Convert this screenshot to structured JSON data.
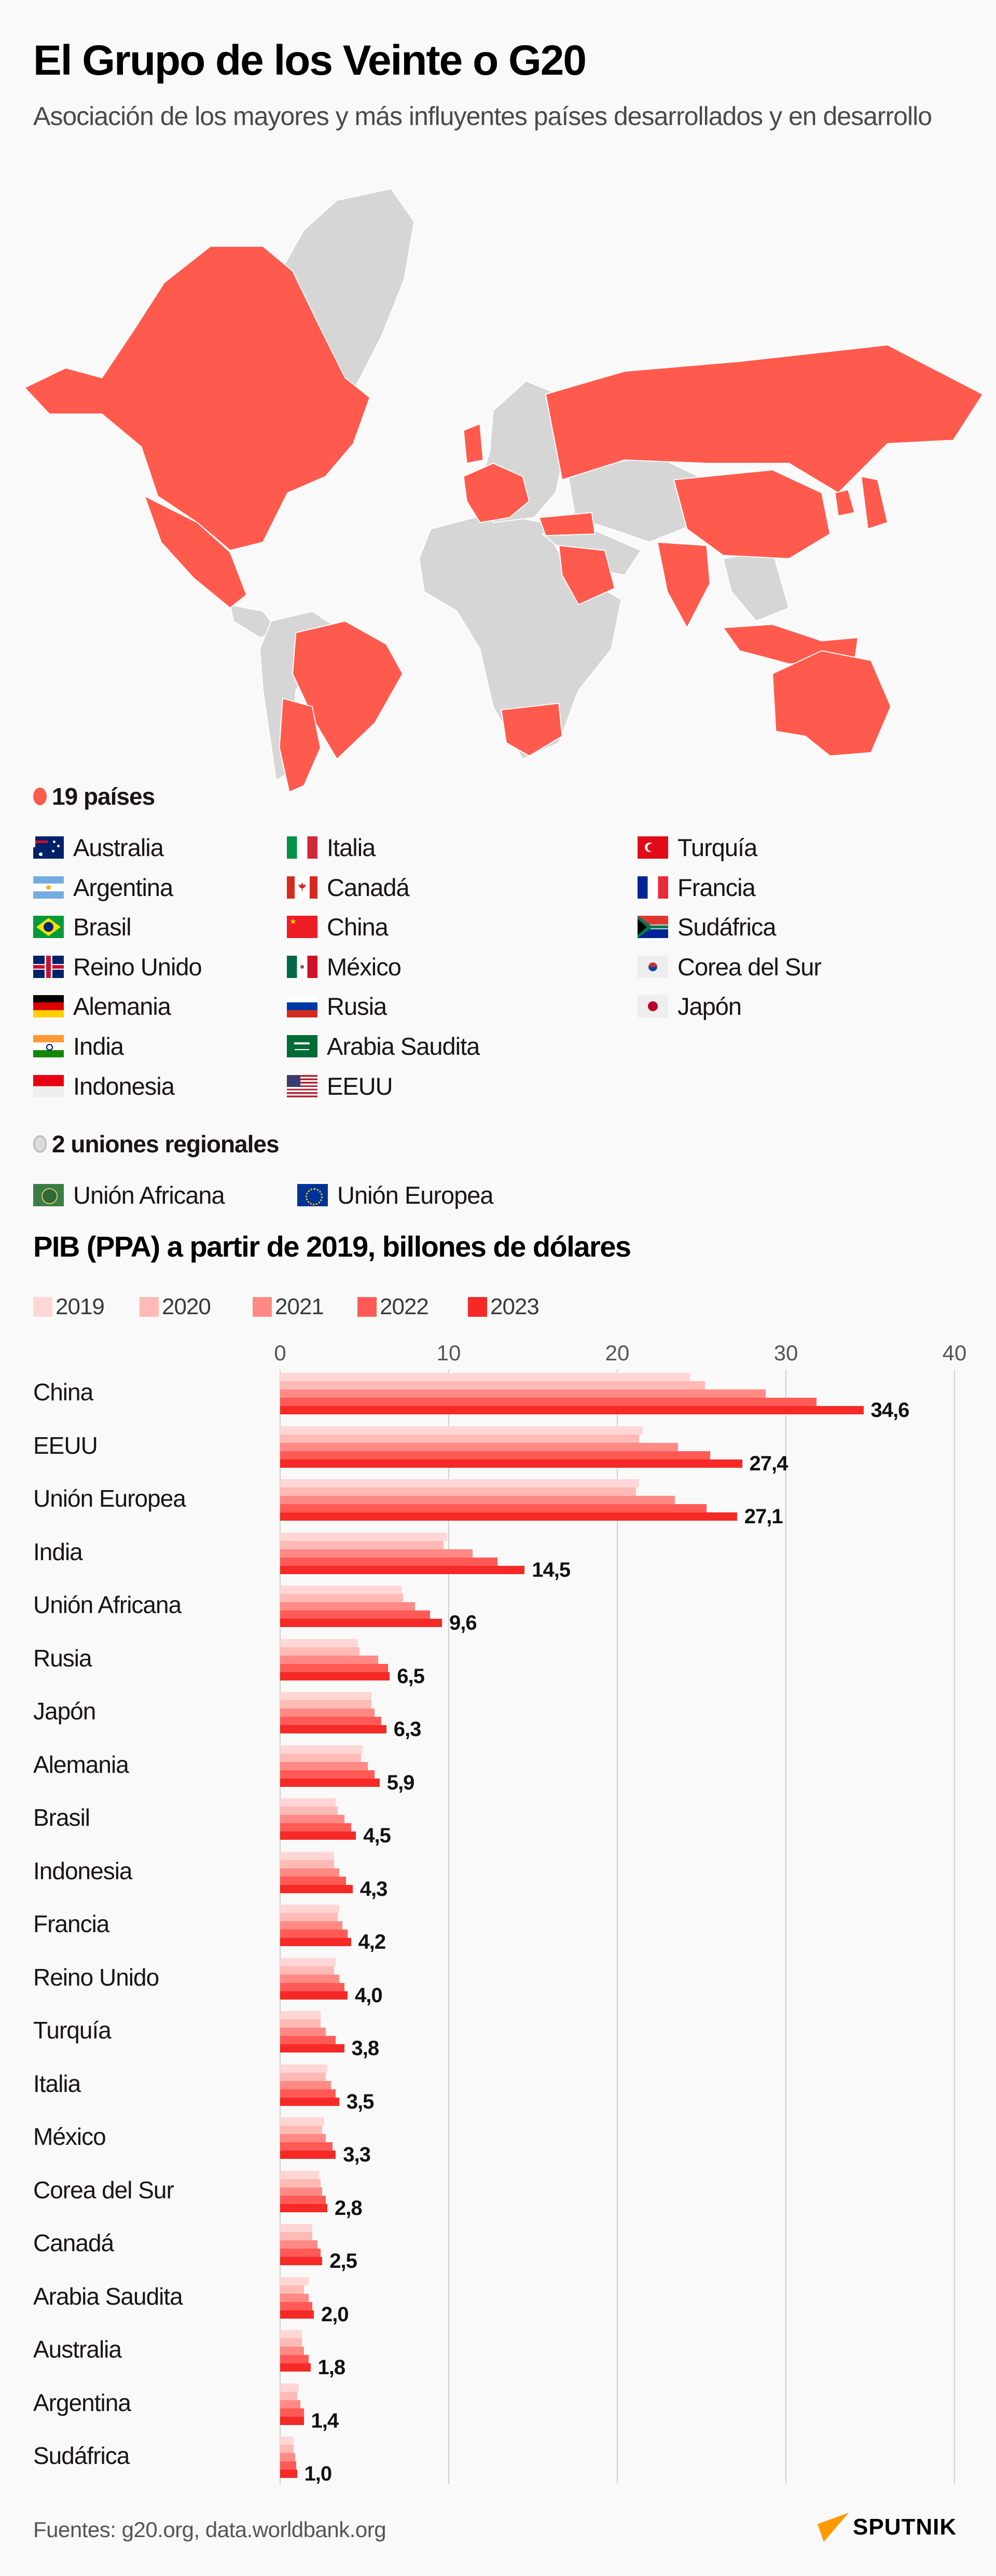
{
  "header": {
    "title": "El Grupo de los Veinte o G20",
    "subtitle": "Asociación de los mayores y más influyentes países desarrollados y en desarrollo"
  },
  "colors": {
    "member": "#ff5a4d",
    "non_member": "#d6d6d6",
    "union_dot": "#dcdcdc"
  },
  "countries": {
    "heading": "19 países",
    "columns": [
      [
        {
          "name": "Australia",
          "flag": "flag-australia"
        },
        {
          "name": "Argentina",
          "flag": "flag-argentina"
        },
        {
          "name": "Brasil",
          "flag": "flag-brasil"
        },
        {
          "name": "Reino Unido",
          "flag": "flag-reino-unido"
        },
        {
          "name": "Alemania",
          "flag": "flag-alemania"
        },
        {
          "name": "India",
          "flag": "flag-india"
        },
        {
          "name": "Indonesia",
          "flag": "flag-indonesia"
        }
      ],
      [
        {
          "name": "Italia",
          "flag": "flag-italia"
        },
        {
          "name": "Canadá",
          "flag": "flag-canada"
        },
        {
          "name": "China",
          "flag": "flag-china"
        },
        {
          "name": "México",
          "flag": "flag-mexico"
        },
        {
          "name": "Rusia",
          "flag": "flag-rusia"
        },
        {
          "name": "Arabia Saudita",
          "flag": "flag-arabia-saudita"
        },
        {
          "name": "EEUU",
          "flag": "flag-eeuu"
        }
      ],
      [
        {
          "name": "Turquía",
          "flag": "flag-turquia"
        },
        {
          "name": "Francia",
          "flag": "flag-francia"
        },
        {
          "name": "Sudáfrica",
          "flag": "flag-sudafrica"
        },
        {
          "name": "Corea del Sur",
          "flag": "flag-corea-del-sur"
        },
        {
          "name": "Japón",
          "flag": "flag-japon"
        }
      ]
    ]
  },
  "unions": {
    "heading": "2 uniones regionales",
    "items": [
      {
        "name": "Unión Africana",
        "flag": "flag-union-africana"
      },
      {
        "name": "Unión Europea",
        "flag": "flag-union-europea"
      }
    ]
  },
  "chart_data": {
    "type": "bar",
    "orientation": "horizontal",
    "title": "PIB (PPA) a partir de 2019, billones de dólares",
    "xlim": [
      0,
      40
    ],
    "xticks": [
      "0",
      "10",
      "20",
      "30",
      "40"
    ],
    "grid": true,
    "legend_position": "top-left",
    "categories": [
      "China",
      "EEUU",
      "Unión Europea",
      "India",
      "Unión Africana",
      "Rusia",
      "Japón",
      "Alemania",
      "Brasil",
      "Indonesia",
      "Francia",
      "Reino Unido",
      "Turquía",
      "Italia",
      "México",
      "Corea del Sur",
      "Canadá",
      "Arabia Saudita",
      "Australia",
      "Argentina",
      "Sudáfrica"
    ],
    "series": [
      {
        "name": "2019",
        "color": "#ffd6d6",
        "values": [
          24.3,
          21.5,
          21.3,
          9.9,
          7.2,
          4.6,
          5.4,
          4.9,
          3.3,
          3.2,
          3.5,
          3.3,
          2.4,
          2.8,
          2.6,
          2.3,
          1.9,
          1.7,
          1.3,
          1.1,
          0.8
        ]
      },
      {
        "name": "2020",
        "color": "#ffbab6",
        "values": [
          25.2,
          21.3,
          21.1,
          9.7,
          7.3,
          4.7,
          5.4,
          4.8,
          3.4,
          3.2,
          3.4,
          3.2,
          2.4,
          2.7,
          2.5,
          2.4,
          1.9,
          1.4,
          1.3,
          1.0,
          0.8
        ]
      },
      {
        "name": "2021",
        "color": "#ff8a85",
        "values": [
          28.8,
          23.6,
          23.4,
          11.4,
          8.0,
          5.8,
          5.6,
          5.2,
          3.8,
          3.5,
          3.7,
          3.5,
          2.7,
          3.0,
          2.7,
          2.5,
          2.2,
          1.7,
          1.4,
          1.2,
          0.9
        ]
      },
      {
        "name": "2022",
        "color": "#ff5a56",
        "values": [
          31.8,
          25.5,
          25.3,
          12.9,
          8.9,
          6.4,
          6.0,
          5.6,
          4.2,
          3.9,
          4.0,
          3.8,
          3.3,
          3.3,
          3.1,
          2.7,
          2.4,
          1.9,
          1.7,
          1.4,
          0.95
        ]
      },
      {
        "name": "2023",
        "color": "#f52a26",
        "values": [
          34.6,
          27.4,
          27.1,
          14.5,
          9.6,
          6.5,
          6.3,
          5.9,
          4.5,
          4.3,
          4.2,
          4.0,
          3.8,
          3.5,
          3.3,
          2.8,
          2.5,
          2.0,
          1.8,
          1.4,
          1.0
        ]
      }
    ],
    "value_labels": [
      "34,6",
      "27,4",
      "27,1",
      "14,5",
      "9,6",
      "6,5",
      "6,3",
      "5,9",
      "4,5",
      "4,3",
      "4,2",
      "4,0",
      "3,8",
      "3,5",
      "3,3",
      "2,8",
      "2,5",
      "2,0",
      "1,8",
      "1,4",
      "1,0"
    ]
  },
  "footer": {
    "sources": "Fuentes: g20.org, data.worldbank.org",
    "logo": "SPUTNIK",
    "logo_color": "#ff9900"
  }
}
